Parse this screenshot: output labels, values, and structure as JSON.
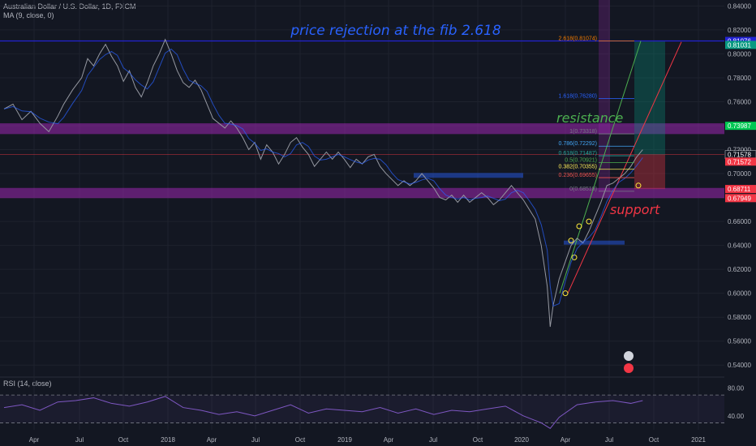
{
  "header": {
    "symbol": "Australian Dollar / U.S. Dollar, 1D, FXCM",
    "ma_label": "MA (9, close, 0)",
    "rsi_label": "RSI (14, close)"
  },
  "chart_data": {
    "type": "line",
    "xlabel": "",
    "ylabel": "",
    "title": "",
    "ylim": [
      0.53,
      0.845
    ],
    "y_ticks": [
      "0.84000",
      "0.82000",
      "0.80000",
      "0.78000",
      "0.76000",
      "0.74000",
      "0.72000",
      "0.70000",
      "0.68000",
      "0.66000",
      "0.64000",
      "0.62000",
      "0.60000",
      "0.58000",
      "0.56000",
      "0.54000"
    ],
    "x_ticks": [
      "Apr",
      "Jul",
      "Oct",
      "2018",
      "Apr",
      "Jul",
      "Oct",
      "2019",
      "Apr",
      "Jul",
      "Oct",
      "2020",
      "Apr",
      "Jul",
      "Oct",
      "2021"
    ],
    "price_path": [
      [
        0,
        0.754
      ],
      [
        3,
        0.758
      ],
      [
        6,
        0.745
      ],
      [
        9,
        0.752
      ],
      [
        12,
        0.742
      ],
      [
        15,
        0.735
      ],
      [
        18,
        0.748
      ],
      [
        20,
        0.758
      ],
      [
        23,
        0.77
      ],
      [
        26,
        0.78
      ],
      [
        28,
        0.796
      ],
      [
        30,
        0.79
      ],
      [
        32,
        0.8
      ],
      [
        34,
        0.808
      ],
      [
        36,
        0.798
      ],
      [
        38,
        0.79
      ],
      [
        40,
        0.777
      ],
      [
        42,
        0.786
      ],
      [
        44,
        0.772
      ],
      [
        46,
        0.764
      ],
      [
        48,
        0.776
      ],
      [
        50,
        0.79
      ],
      [
        52,
        0.8
      ],
      [
        54,
        0.812
      ],
      [
        56,
        0.8
      ],
      [
        58,
        0.786
      ],
      [
        60,
        0.776
      ],
      [
        62,
        0.772
      ],
      [
        64,
        0.778
      ],
      [
        66,
        0.77
      ],
      [
        68,
        0.758
      ],
      [
        70,
        0.746
      ],
      [
        72,
        0.742
      ],
      [
        74,
        0.738
      ],
      [
        76,
        0.744
      ],
      [
        78,
        0.738
      ],
      [
        80,
        0.73
      ],
      [
        82,
        0.72
      ],
      [
        84,
        0.726
      ],
      [
        86,
        0.712
      ],
      [
        88,
        0.724
      ],
      [
        90,
        0.718
      ],
      [
        92,
        0.708
      ],
      [
        94,
        0.716
      ],
      [
        96,
        0.726
      ],
      [
        98,
        0.73
      ],
      [
        100,
        0.722
      ],
      [
        102,
        0.716
      ],
      [
        104,
        0.706
      ],
      [
        106,
        0.712
      ],
      [
        108,
        0.718
      ],
      [
        110,
        0.712
      ],
      [
        112,
        0.718
      ],
      [
        114,
        0.712
      ],
      [
        116,
        0.705
      ],
      [
        118,
        0.712
      ],
      [
        120,
        0.708
      ],
      [
        122,
        0.714
      ],
      [
        124,
        0.716
      ],
      [
        126,
        0.706
      ],
      [
        128,
        0.7
      ],
      [
        130,
        0.695
      ],
      [
        132,
        0.69
      ],
      [
        134,
        0.694
      ],
      [
        136,
        0.69
      ],
      [
        138,
        0.694
      ],
      [
        140,
        0.7
      ],
      [
        142,
        0.694
      ],
      [
        144,
        0.688
      ],
      [
        146,
        0.68
      ],
      [
        148,
        0.678
      ],
      [
        150,
        0.682
      ],
      [
        152,
        0.676
      ],
      [
        154,
        0.682
      ],
      [
        156,
        0.676
      ],
      [
        158,
        0.68
      ],
      [
        160,
        0.684
      ],
      [
        162,
        0.68
      ],
      [
        164,
        0.674
      ],
      [
        166,
        0.678
      ],
      [
        168,
        0.684
      ],
      [
        170,
        0.69
      ],
      [
        172,
        0.684
      ],
      [
        174,
        0.678
      ],
      [
        176,
        0.67
      ],
      [
        178,
        0.662
      ],
      [
        180,
        0.64
      ],
      [
        182,
        0.606
      ],
      [
        183,
        0.572
      ],
      [
        184,
        0.59
      ],
      [
        186,
        0.612
      ],
      [
        188,
        0.626
      ],
      [
        190,
        0.64
      ],
      [
        192,
        0.646
      ],
      [
        194,
        0.642
      ],
      [
        196,
        0.652
      ],
      [
        198,
        0.664
      ],
      [
        200,
        0.676
      ],
      [
        202,
        0.69
      ],
      [
        204,
        0.692
      ],
      [
        206,
        0.696
      ],
      [
        208,
        0.7
      ],
      [
        210,
        0.706
      ],
      [
        212,
        0.714
      ],
      [
        214,
        0.72
      ]
    ],
    "x_range": [
      0,
      240
    ],
    "rsi_ylim": [
      20,
      90
    ],
    "rsi_ticks": [
      "80.00",
      "40.00"
    ],
    "rsi_levels": [
      70,
      30
    ],
    "rsi_path": [
      [
        0,
        52
      ],
      [
        6,
        56
      ],
      [
        12,
        48
      ],
      [
        18,
        60
      ],
      [
        24,
        62
      ],
      [
        30,
        66
      ],
      [
        36,
        58
      ],
      [
        42,
        54
      ],
      [
        48,
        60
      ],
      [
        54,
        68
      ],
      [
        60,
        52
      ],
      [
        66,
        48
      ],
      [
        72,
        42
      ],
      [
        78,
        46
      ],
      [
        84,
        40
      ],
      [
        90,
        48
      ],
      [
        96,
        56
      ],
      [
        102,
        44
      ],
      [
        108,
        50
      ],
      [
        114,
        48
      ],
      [
        120,
        46
      ],
      [
        126,
        52
      ],
      [
        132,
        44
      ],
      [
        138,
        50
      ],
      [
        144,
        42
      ],
      [
        150,
        48
      ],
      [
        156,
        46
      ],
      [
        162,
        50
      ],
      [
        168,
        54
      ],
      [
        174,
        40
      ],
      [
        180,
        30
      ],
      [
        183,
        22
      ],
      [
        186,
        38
      ],
      [
        192,
        56
      ],
      [
        198,
        60
      ],
      [
        204,
        62
      ],
      [
        210,
        58
      ],
      [
        214,
        62
      ]
    ],
    "price_tags": [
      {
        "value": "0.81076",
        "y": 0.8108,
        "color": "#2323d3"
      },
      {
        "value": "0.81031",
        "y": 0.8075,
        "color": "#089981"
      },
      {
        "value": "0.73987",
        "y": 0.7399,
        "color": "#00c853"
      },
      {
        "value": "0.71578",
        "y": 0.7158,
        "color": "#131722"
      },
      {
        "value": "0.71572",
        "y": 0.71,
        "color": "#f23645"
      },
      {
        "value": "0.68711",
        "y": 0.6871,
        "color": "#f23645"
      },
      {
        "value": "0.67949",
        "y": 0.6795,
        "color": "#f23645"
      }
    ],
    "fib_levels": [
      {
        "label": "2.618(0.81074)",
        "y": 0.8107,
        "color": "#f57c00"
      },
      {
        "label": "1.618(0.76280)",
        "y": 0.7628,
        "color": "#2962ff"
      },
      {
        "label": "1(0.73318)",
        "y": 0.7332,
        "color": "#787b86"
      },
      {
        "label": "0.786(0.72292)",
        "y": 0.7229,
        "color": "#42a5f5"
      },
      {
        "label": "0.618(0.71487)",
        "y": 0.7149,
        "color": "#26a69a"
      },
      {
        "label": "0.5(0.70921)",
        "y": 0.7092,
        "color": "#4caf50"
      },
      {
        "label": "0.382(0.70355)",
        "y": 0.7036,
        "color": "#ffee58"
      },
      {
        "label": "0.236(0.69655)",
        "y": 0.6966,
        "color": "#ef5350"
      },
      {
        "label": "0(0.68518)",
        "y": 0.6852,
        "color": "#787b86"
      }
    ]
  },
  "annotations": {
    "title": "price rejection at the fib 2.618",
    "resistance": "resistance",
    "support": "support"
  },
  "colors": {
    "background": "#131722",
    "price_line": "#9598a1",
    "ma_line": "#2962ff",
    "zone": "#9c27b0",
    "rsi_line": "#7e57c2",
    "resistance_text": "#4caf50",
    "support_text": "#f23645",
    "title_text": "#2962ff"
  }
}
